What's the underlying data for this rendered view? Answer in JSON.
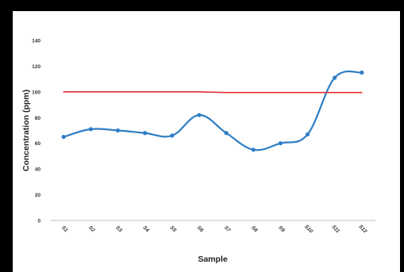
{
  "chart_data": {
    "type": "line",
    "xlabel": "Sample",
    "ylabel": "Concentration (ppm)",
    "categories": [
      "S1",
      "S2",
      "S3",
      "S4",
      "S5",
      "S6",
      "S7",
      "S8",
      "S9",
      "S10",
      "S11",
      "S12"
    ],
    "ylim": [
      0,
      140
    ],
    "yticks": [
      0,
      20,
      40,
      60,
      80,
      100,
      120,
      140
    ],
    "grid": false,
    "legend": "none",
    "series": [
      {
        "color": "#2e7dc6",
        "smooth": true,
        "markers": true,
        "values": [
          65,
          71,
          70,
          68,
          66,
          82,
          68,
          55,
          60,
          67,
          111,
          115
        ]
      },
      {
        "color": "#e03030",
        "smooth": false,
        "markers": false,
        "values": [
          100,
          100,
          100,
          100,
          100,
          100,
          99.5,
          99.5,
          99.5,
          99.5,
          99.5,
          99.5
        ]
      }
    ]
  }
}
